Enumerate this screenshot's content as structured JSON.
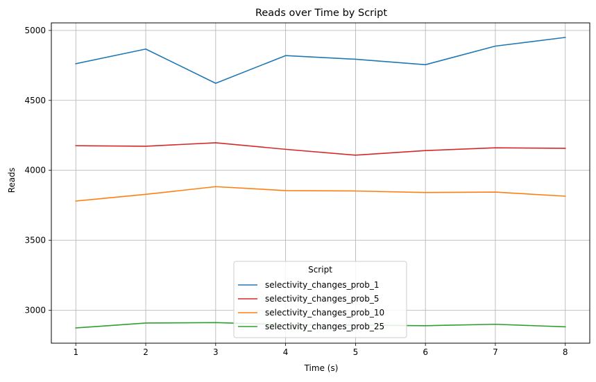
{
  "chart_data": {
    "type": "line",
    "title": "Reads over Time by Script",
    "xlabel": "Time (s)",
    "ylabel": "Reads",
    "x": [
      1,
      2,
      3,
      4,
      5,
      6,
      7,
      8
    ],
    "xlim": [
      0.65,
      8.35
    ],
    "ylim": [
      2764,
      5054
    ],
    "xticks": [
      1,
      2,
      3,
      4,
      5,
      6,
      7,
      8
    ],
    "yticks": [
      3000,
      3500,
      4000,
      4500,
      5000
    ],
    "grid": true,
    "legend": {
      "title": "Script",
      "placement": "lower-center"
    },
    "series": [
      {
        "name": "selectivity_changes_prob_1",
        "color": "#1f77b4",
        "values": [
          4762,
          4867,
          4622,
          4820,
          4794,
          4755,
          4888,
          4950
        ]
      },
      {
        "name": "selectivity_changes_prob_5",
        "color": "#d62728",
        "values": [
          4176,
          4172,
          4197,
          4150,
          4108,
          4141,
          4161,
          4157
        ]
      },
      {
        "name": "selectivity_changes_prob_10",
        "color": "#ff7f0e",
        "values": [
          3780,
          3828,
          3883,
          3855,
          3852,
          3841,
          3844,
          3815
        ]
      },
      {
        "name": "selectivity_changes_prob_25",
        "color": "#2ca02c",
        "values": [
          2873,
          2908,
          2911,
          2896,
          2893,
          2889,
          2899,
          2881
        ]
      }
    ]
  }
}
